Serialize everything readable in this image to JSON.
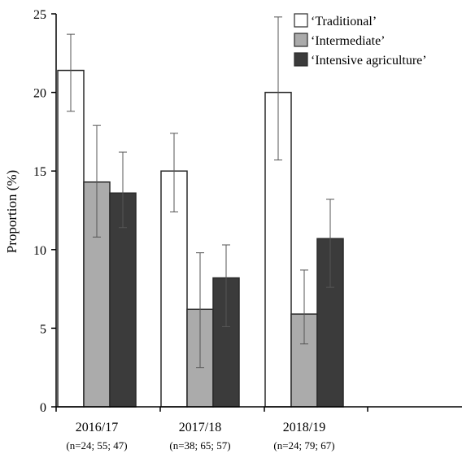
{
  "chart_data": {
    "type": "bar",
    "ylabel": "Proportion (%)",
    "ylim": [
      0,
      25
    ],
    "yticks": [
      0,
      5,
      10,
      15,
      20,
      25
    ],
    "grid": false,
    "legend_position": "top-right",
    "categories": [
      "2016/17",
      "2017/18",
      "2018/19"
    ],
    "category_notes": [
      "(n=24; 55; 47)",
      "(n=38; 65; 57)",
      "(n=24; 79; 67)"
    ],
    "series": [
      {
        "name": "‘Traditional’",
        "color": "#ffffff",
        "values": [
          21.4,
          15.0,
          20.0
        ],
        "error_low": [
          18.8,
          12.4,
          15.7
        ],
        "error_high": [
          23.7,
          17.4,
          24.8
        ]
      },
      {
        "name": "‘Intermediate’",
        "color": "#ababab",
        "values": [
          14.3,
          6.2,
          5.9
        ],
        "error_low": [
          10.8,
          2.5,
          4.0
        ],
        "error_high": [
          17.9,
          9.8,
          8.7
        ]
      },
      {
        "name": "‘Intensive agriculture’",
        "color": "#3b3b3b",
        "values": [
          13.6,
          8.2,
          10.7
        ],
        "error_low": [
          11.4,
          5.1,
          7.6
        ],
        "error_high": [
          16.2,
          10.3,
          13.2
        ]
      }
    ]
  }
}
